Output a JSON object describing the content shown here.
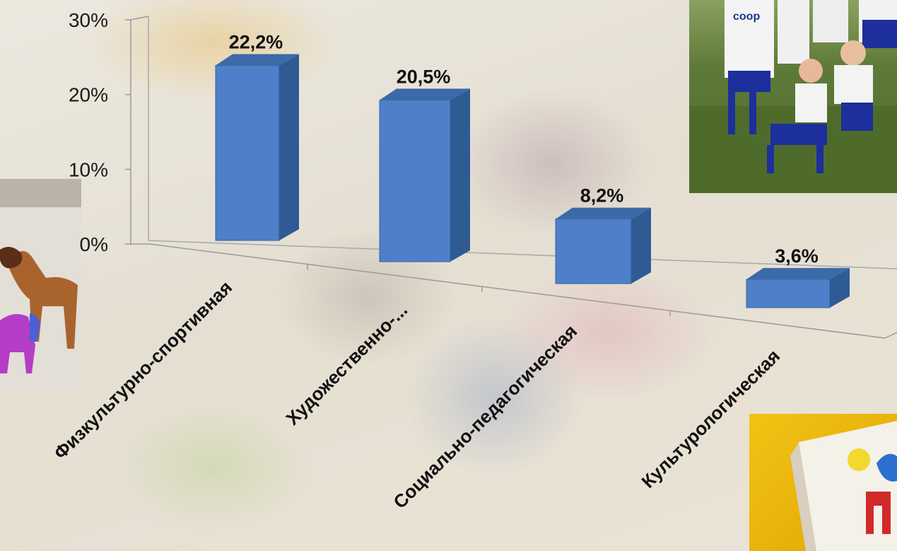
{
  "chart_data": {
    "type": "bar",
    "categories": [
      "Физкультурно-спортивная",
      "Художественно-...",
      "Социально-педагогическая",
      "Культурологическая"
    ],
    "values": [
      22.2,
      20.5,
      8.2,
      3.6
    ],
    "data_labels": [
      "22,2%",
      "20,5%",
      "8,2%",
      "3,6%"
    ],
    "yticks": [
      "0%",
      "10%",
      "20%",
      "30%"
    ],
    "ylim": [
      0,
      30
    ],
    "grid": false,
    "legend": "none",
    "style": "3d-column",
    "colors": {
      "bar_front": "#4f7fc8",
      "bar_side": "#2f5b94",
      "bar_top": "#3c6aa8"
    }
  },
  "photos": {
    "left": "clay-toy-animals-photo",
    "right": "youth-football-team-photo",
    "corner": "childrens-drawing-photo"
  }
}
